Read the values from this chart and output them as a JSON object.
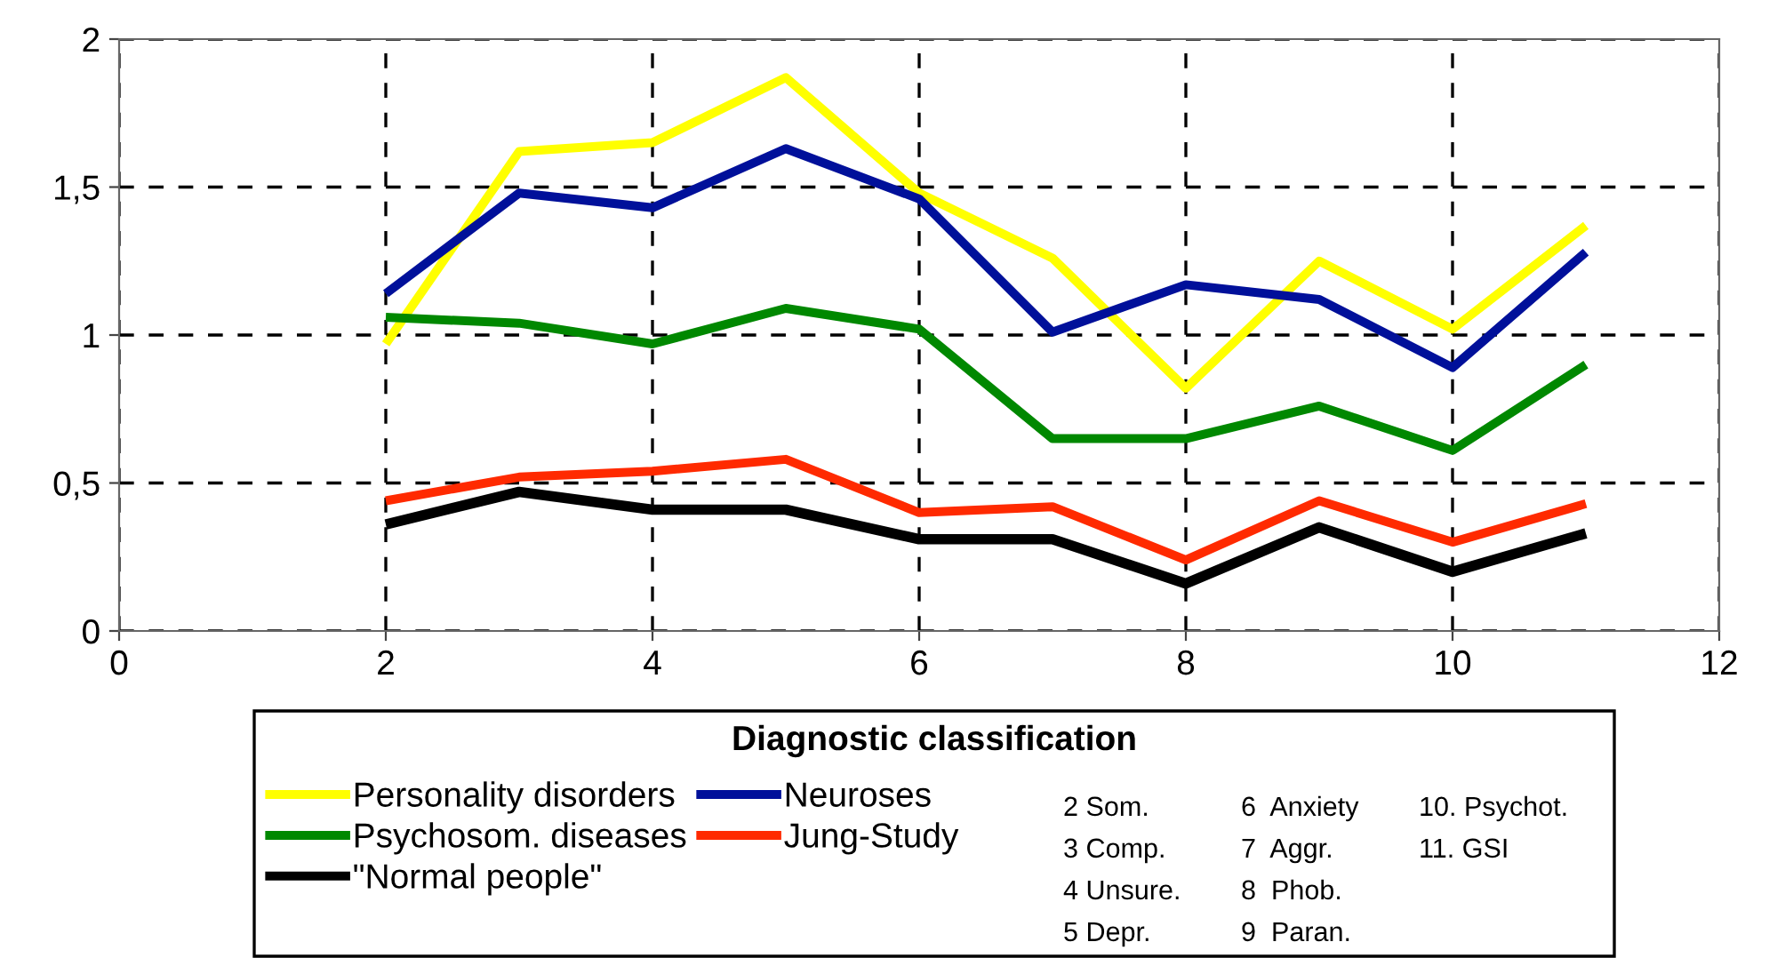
{
  "chart_data": {
    "type": "line",
    "legend_title": "Diagnostic classification",
    "x": [
      2,
      3,
      4,
      5,
      6,
      7,
      8,
      9,
      10,
      11
    ],
    "series": [
      {
        "name": "Personality disorders",
        "color": "#ffff00",
        "values": [
          0.97,
          1.62,
          1.65,
          1.87,
          1.48,
          1.26,
          0.82,
          1.25,
          1.02,
          1.37
        ]
      },
      {
        "name": "Psychosom. diseases",
        "color": "#008800",
        "values": [
          1.06,
          1.04,
          0.97,
          1.09,
          1.02,
          0.65,
          0.65,
          0.76,
          0.61,
          0.9
        ]
      },
      {
        "name": "\"Normal people\"",
        "color": "#000000",
        "values": [
          0.36,
          0.47,
          0.41,
          0.41,
          0.31,
          0.31,
          0.16,
          0.35,
          0.2,
          0.33
        ]
      },
      {
        "name": "Neuroses",
        "color": "#00109a",
        "values": [
          1.14,
          1.48,
          1.43,
          1.63,
          1.46,
          1.01,
          1.17,
          1.12,
          0.89,
          1.28
        ]
      },
      {
        "name": "Jung-Study",
        "color": "#ff2a00",
        "values": [
          0.44,
          0.52,
          0.54,
          0.58,
          0.4,
          0.42,
          0.24,
          0.44,
          0.3,
          0.43
        ]
      }
    ],
    "xlim": [
      0,
      12
    ],
    "xticks": [
      0,
      2,
      4,
      6,
      8,
      10,
      12
    ],
    "ylim": [
      0,
      2
    ],
    "yticks": [
      0,
      {
        "value": 0.5,
        "label": "0,5"
      },
      1,
      {
        "value": 1.5,
        "label": "1,5"
      },
      2
    ],
    "grid": true,
    "legend": "bottom",
    "marker": "none",
    "line_style": "solid",
    "annotations": [
      "2 Som.",
      "3 Comp.",
      "4 Unsure.",
      "5 Depr.",
      "6  Anxiety",
      "7  Aggr.",
      "8  Phob.",
      "9  Paran.",
      "10. Psychot.",
      "11. GSI"
    ]
  }
}
